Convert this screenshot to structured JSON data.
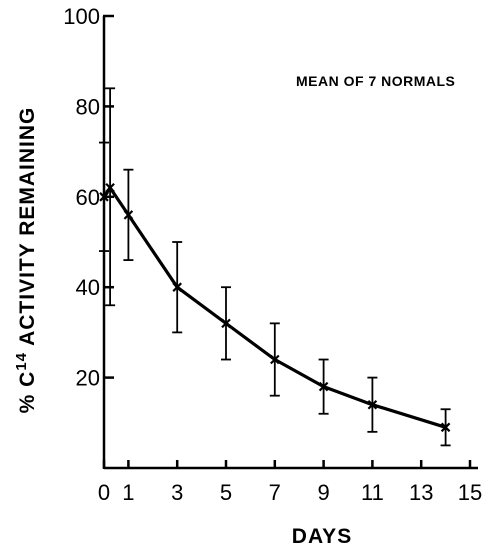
{
  "chart_data": {
    "type": "line",
    "title": "",
    "xlabel": "DAYS",
    "ylabel_prefix": "% C",
    "ylabel_superscript": "14",
    "ylabel_suffix": " ACTIVITY REMAINING",
    "annotation": "MEAN OF 7 NORMALS",
    "xlim": [
      0,
      15
    ],
    "ylim": [
      0,
      100
    ],
    "x_ticks": [
      0,
      1,
      3,
      5,
      7,
      9,
      11,
      13,
      15
    ],
    "x_tick_labels": [
      "0",
      "1",
      "3",
      "5",
      "7",
      "9",
      "11",
      "13",
      "15"
    ],
    "y_ticks": [
      20,
      40,
      60,
      80,
      100
    ],
    "y_tick_labels": [
      "20",
      "40",
      "60",
      "80",
      "100"
    ],
    "grid": false,
    "legend": "none",
    "series": [
      {
        "x": [
          0,
          0.25,
          1,
          3,
          5,
          7,
          9,
          11,
          14
        ],
        "y": [
          60,
          62,
          56,
          40,
          32,
          24,
          18,
          14,
          9
        ],
        "err_low": [
          48,
          36,
          46,
          30,
          24,
          16,
          12,
          8,
          5
        ],
        "err_high": [
          72,
          84,
          66,
          50,
          40,
          32,
          24,
          20,
          13
        ]
      }
    ]
  }
}
